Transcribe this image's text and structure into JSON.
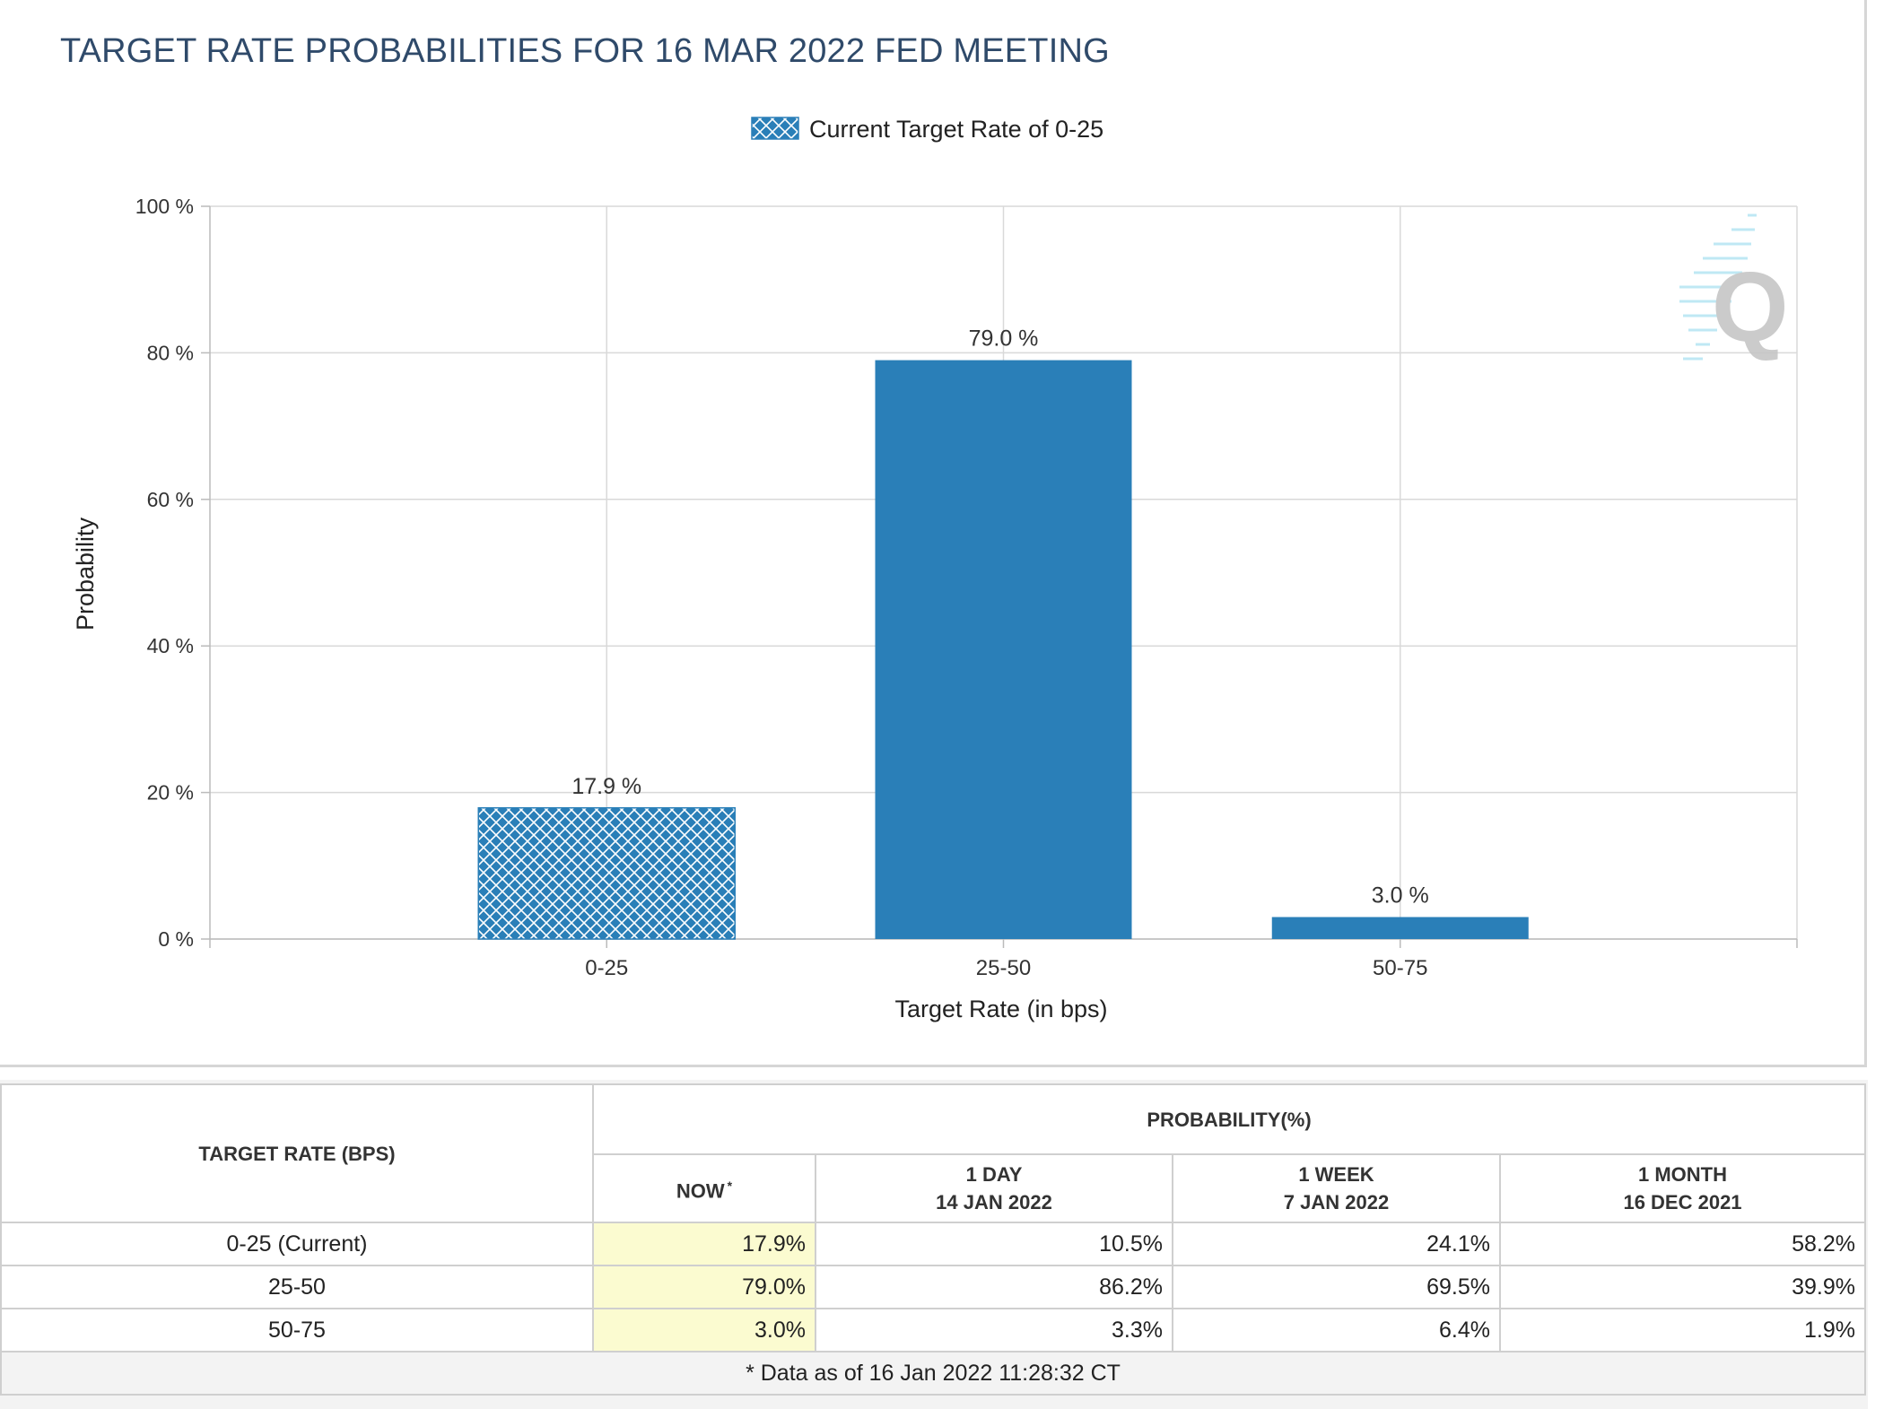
{
  "page_title": "TARGET RATE PROBABILITIES FOR 16 MAR 2022 FED MEETING",
  "colors": {
    "bar": "#2a7fb8",
    "grid": "#d9d9d9",
    "title": "#2f4a6a",
    "now_highlight": "#fbfbd0"
  },
  "chart_data": {
    "type": "bar",
    "title": "TARGET RATE PROBABILITIES FOR 16 MAR 2022 FED MEETING",
    "legend": {
      "label": "Current Target Rate of 0-25",
      "placement": "top-center",
      "pattern": "crosshatch"
    },
    "categories": [
      "0-25",
      "25-50",
      "50-75"
    ],
    "values": [
      17.9,
      79.0,
      3.0
    ],
    "value_labels": [
      "17.9 %",
      "79.0 %",
      "3.0 %"
    ],
    "highlighted_category": "0-25",
    "xlabel": "Target Rate (in bps)",
    "ylabel": "Probability",
    "ylim": [
      0,
      100
    ],
    "yticks": [
      0,
      20,
      40,
      60,
      80,
      100
    ],
    "ytick_labels": [
      "0 %",
      "20 %",
      "40 %",
      "60 %",
      "80 %",
      "100 %"
    ],
    "grid": true,
    "watermark": "Q"
  },
  "table": {
    "target_rate_header": "TARGET RATE (BPS)",
    "probability_header": "PROBABILITY(%)",
    "columns": [
      {
        "line1": "NOW",
        "line2": "",
        "star": "*"
      },
      {
        "line1": "1 DAY",
        "line2": "14 JAN 2022",
        "star": ""
      },
      {
        "line1": "1 WEEK",
        "line2": "7 JAN 2022",
        "star": ""
      },
      {
        "line1": "1 MONTH",
        "line2": "16 DEC 2021",
        "star": ""
      }
    ],
    "rows": [
      {
        "rate": "0-25 (Current)",
        "values": [
          "17.9%",
          "10.5%",
          "24.1%",
          "58.2%"
        ]
      },
      {
        "rate": "25-50",
        "values": [
          "79.0%",
          "86.2%",
          "69.5%",
          "39.9%"
        ]
      },
      {
        "rate": "50-75",
        "values": [
          "3.0%",
          "3.3%",
          "6.4%",
          "1.9%"
        ]
      }
    ],
    "footnote": "* Data as of 16 Jan 2022 11:28:32 CT"
  }
}
